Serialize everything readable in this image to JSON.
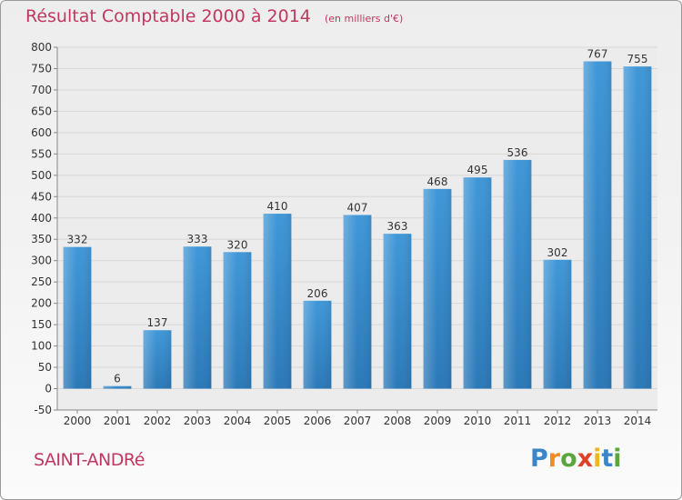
{
  "chart_data": {
    "type": "bar",
    "title": "Résultat Comptable 2000 à 2014",
    "subtitle": "(en milliers d'€)",
    "categories": [
      "2000",
      "2001",
      "2002",
      "2003",
      "2004",
      "2005",
      "2006",
      "2007",
      "2008",
      "2009",
      "2010",
      "2011",
      "2012",
      "2013",
      "2014"
    ],
    "values": [
      332,
      6,
      137,
      333,
      320,
      410,
      206,
      407,
      363,
      468,
      495,
      536,
      302,
      767,
      755
    ],
    "xlabel": "",
    "ylabel": "",
    "ylim": [
      -50,
      800
    ],
    "yticks": [
      -50,
      0,
      50,
      100,
      150,
      200,
      250,
      300,
      350,
      400,
      450,
      500,
      550,
      600,
      650,
      700,
      750,
      800
    ],
    "grid": true,
    "legend": "none",
    "bar_color": "#3f97d8",
    "bar_color_dark": "#2a78b8"
  },
  "footer": {
    "town": "SAINT-ANDRé",
    "logo": {
      "letters": [
        "P",
        "r",
        "o",
        "x",
        "i",
        "t",
        "i"
      ],
      "colors": [
        "#3a86c8",
        "#f28c1f",
        "#5aa63c",
        "#e0402a",
        "#f2b51f",
        "#3a86c8",
        "#5aa63c"
      ]
    }
  },
  "colors": {
    "title": "#c0385f",
    "grid": "#d7d7d7",
    "plot_bg": "#ececec"
  }
}
